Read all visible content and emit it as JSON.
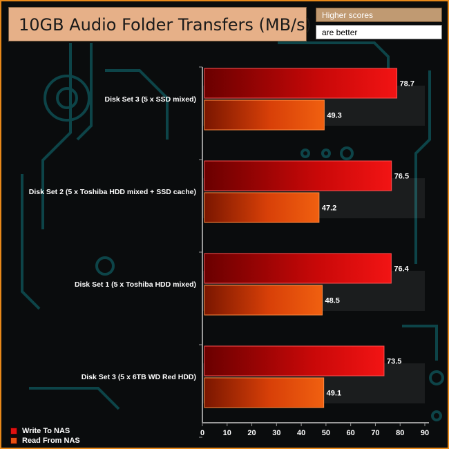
{
  "title": "10GB Audio Folder Transfers (MB/s)",
  "note": {
    "line1": "Higher scores",
    "line2": "are better"
  },
  "colors": {
    "write": "#e01010",
    "read": "#e85010",
    "frame": "#e8891a"
  },
  "chart_data": {
    "type": "bar",
    "orientation": "horizontal",
    "title": "10GB Audio Folder Transfers (MB/s)",
    "categories": [
      "Disk Set 3 (5 x SSD mixed)",
      "Disk Set 2 (5 x Toshiba HDD mixed + SSD cache)",
      "Disk Set 1 (5 x Toshiba HDD mixed)",
      "Disk Set 3 (5 x 6TB WD Red HDD)"
    ],
    "series": [
      {
        "name": "Write To NAS",
        "values": [
          78.7,
          76.5,
          76.4,
          73.5
        ]
      },
      {
        "name": "Read From NAS",
        "values": [
          49.3,
          47.2,
          48.5,
          49.1
        ]
      }
    ],
    "xlim": [
      0,
      90
    ],
    "xticks": [
      0,
      10,
      20,
      30,
      40,
      50,
      60,
      70,
      80,
      90
    ],
    "legend": "bottom-left",
    "grid": false
  }
}
